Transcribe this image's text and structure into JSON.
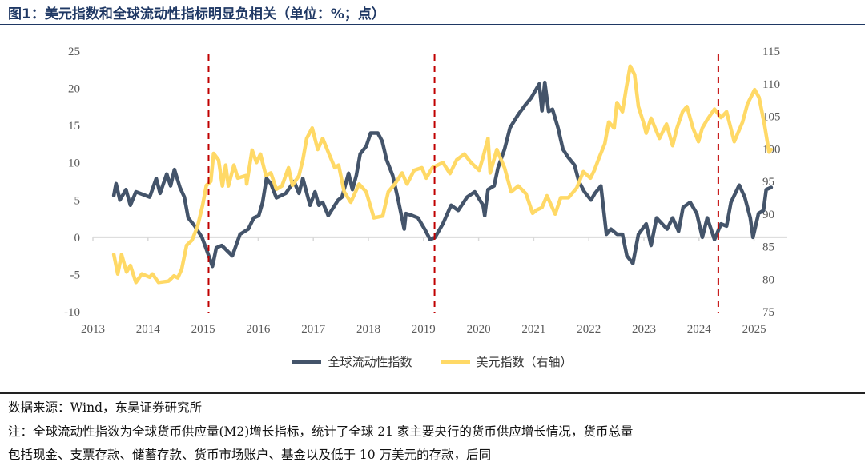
{
  "title": "图1：美元指数和全球流动性指标明显负相关（单位：%；点）",
  "footer": {
    "source": "数据来源：Wind，东吴证券研究所",
    "note_line1": "注：全球流动性指数为全球货币供应量(M2)增长指标，统计了全球 21 家主要央行的货币供应增长情况，货币总量",
    "note_line2": "包括现金、支票存款、储蓄存款、货币市场账户、基金以及低于 10 万美元的存款，后同"
  },
  "chart_data": {
    "type": "line",
    "x_ticks": [
      "2013",
      "2014",
      "2015",
      "2016",
      "2017",
      "2018",
      "2019",
      "2020",
      "2021",
      "2022",
      "2023",
      "2024",
      "2025"
    ],
    "xlim": [
      2013,
      2025.6
    ],
    "y_left": {
      "lim": [
        -10,
        25
      ],
      "ticks": [
        "25",
        "20",
        "15",
        "10",
        "5",
        "0",
        "-5",
        "-10"
      ]
    },
    "y_right": {
      "lim": [
        75,
        115
      ],
      "ticks": [
        "115",
        "110",
        "105",
        "100",
        "95",
        "90",
        "85",
        "80",
        "75"
      ]
    },
    "reference_lines": {
      "x": [
        2015.1,
        2019.2,
        2024.35
      ],
      "color": "#c00000",
      "style": "dashed"
    },
    "grid": false,
    "legend_position": "bottom",
    "series": [
      {
        "name": "全球流动性指数",
        "axis": "left",
        "color": "#44546a",
        "points": [
          [
            2013.38,
            5.6
          ],
          [
            2013.42,
            7.2
          ],
          [
            2013.49,
            5.0
          ],
          [
            2013.6,
            6.4
          ],
          [
            2013.68,
            4.3
          ],
          [
            2013.78,
            6.1
          ],
          [
            2014.03,
            5.4
          ],
          [
            2014.15,
            7.9
          ],
          [
            2014.22,
            5.9
          ],
          [
            2014.34,
            8.5
          ],
          [
            2014.41,
            6.9
          ],
          [
            2014.48,
            9.1
          ],
          [
            2014.58,
            6.7
          ],
          [
            2014.66,
            5.4
          ],
          [
            2014.73,
            2.6
          ],
          [
            2014.85,
            1.5
          ],
          [
            2014.98,
            0
          ],
          [
            2015.06,
            -1.6
          ],
          [
            2015.17,
            -3.9
          ],
          [
            2015.24,
            -1.4
          ],
          [
            2015.34,
            -1.1
          ],
          [
            2015.53,
            -2.5
          ],
          [
            2015.67,
            0.4
          ],
          [
            2015.82,
            1.1
          ],
          [
            2015.92,
            2.6
          ],
          [
            2016.01,
            2.9
          ],
          [
            2016.08,
            4.7
          ],
          [
            2016.15,
            7.9
          ],
          [
            2016.23,
            7.2
          ],
          [
            2016.33,
            5.3
          ],
          [
            2016.5,
            5.9
          ],
          [
            2016.65,
            7.5
          ],
          [
            2016.74,
            5.9
          ],
          [
            2016.81,
            7.9
          ],
          [
            2016.94,
            4.3
          ],
          [
            2017.03,
            6.1
          ],
          [
            2017.1,
            4.3
          ],
          [
            2017.17,
            4.7
          ],
          [
            2017.27,
            2.9
          ],
          [
            2017.45,
            5.0
          ],
          [
            2017.52,
            5.4
          ],
          [
            2017.64,
            8.6
          ],
          [
            2017.71,
            6.4
          ],
          [
            2017.78,
            8.3
          ],
          [
            2017.85,
            11.2
          ],
          [
            2017.96,
            12.2
          ],
          [
            2018.04,
            14.0
          ],
          [
            2018.17,
            14.0
          ],
          [
            2018.25,
            12.9
          ],
          [
            2018.33,
            10.4
          ],
          [
            2018.44,
            8.3
          ],
          [
            2018.54,
            5.0
          ],
          [
            2018.65,
            1.1
          ],
          [
            2018.68,
            3.2
          ],
          [
            2018.8,
            2.9
          ],
          [
            2018.9,
            2.6
          ],
          [
            2019.02,
            1.1
          ],
          [
            2019.12,
            -0.3
          ],
          [
            2019.21,
            0
          ],
          [
            2019.35,
            1.8
          ],
          [
            2019.5,
            4.3
          ],
          [
            2019.63,
            3.6
          ],
          [
            2019.79,
            5.4
          ],
          [
            2019.93,
            6.1
          ],
          [
            2020.08,
            4.3
          ],
          [
            2020.11,
            2.9
          ],
          [
            2020.17,
            6.4
          ],
          [
            2020.28,
            6.9
          ],
          [
            2020.35,
            9.3
          ],
          [
            2020.47,
            11.8
          ],
          [
            2020.57,
            14.7
          ],
          [
            2020.72,
            16.5
          ],
          [
            2020.86,
            17.9
          ],
          [
            2020.95,
            18.7
          ],
          [
            2021.1,
            20.6
          ],
          [
            2021.15,
            17.0
          ],
          [
            2021.2,
            20.8
          ],
          [
            2021.27,
            16.9
          ],
          [
            2021.34,
            17.2
          ],
          [
            2021.44,
            14.7
          ],
          [
            2021.53,
            11.8
          ],
          [
            2021.63,
            10.7
          ],
          [
            2021.74,
            9.7
          ],
          [
            2021.82,
            7.5
          ],
          [
            2021.92,
            6.1
          ],
          [
            2022.04,
            5.0
          ],
          [
            2022.11,
            5.9
          ],
          [
            2022.22,
            6.9
          ],
          [
            2022.32,
            0.4
          ],
          [
            2022.4,
            1.1
          ],
          [
            2022.51,
            0.4
          ],
          [
            2022.61,
            0.4
          ],
          [
            2022.69,
            -2.5
          ],
          [
            2022.8,
            -3.5
          ],
          [
            2022.9,
            0.4
          ],
          [
            2023.04,
            1.8
          ],
          [
            2023.13,
            -1.1
          ],
          [
            2023.23,
            2.6
          ],
          [
            2023.42,
            1.1
          ],
          [
            2023.52,
            2.6
          ],
          [
            2023.63,
            0.8
          ],
          [
            2023.71,
            4.0
          ],
          [
            2023.84,
            4.7
          ],
          [
            2023.96,
            3.2
          ],
          [
            2024.06,
            0
          ],
          [
            2024.15,
            2.6
          ],
          [
            2024.28,
            -0.3
          ],
          [
            2024.4,
            1.8
          ],
          [
            2024.5,
            1.5
          ],
          [
            2024.58,
            4.7
          ],
          [
            2024.73,
            7.0
          ],
          [
            2024.83,
            5.4
          ],
          [
            2024.93,
            2.6
          ],
          [
            2024.98,
            0
          ],
          [
            2025.08,
            3.2
          ],
          [
            2025.17,
            3.6
          ],
          [
            2025.22,
            6.4
          ],
          [
            2025.31,
            6.7
          ]
        ]
      },
      {
        "name": "美元指数（右轴）",
        "axis": "right",
        "color": "#ffd966",
        "points": [
          [
            2013.38,
            83.8
          ],
          [
            2013.45,
            80.8
          ],
          [
            2013.52,
            83.8
          ],
          [
            2013.61,
            81.1
          ],
          [
            2013.68,
            82.1
          ],
          [
            2013.78,
            79.5
          ],
          [
            2013.89,
            80.8
          ],
          [
            2014.03,
            80.3
          ],
          [
            2014.08,
            80.8
          ],
          [
            2014.19,
            79.5
          ],
          [
            2014.37,
            79.7
          ],
          [
            2014.47,
            80.5
          ],
          [
            2014.54,
            80.2
          ],
          [
            2014.61,
            81.5
          ],
          [
            2014.7,
            85.2
          ],
          [
            2014.8,
            86.0
          ],
          [
            2014.9,
            88.1
          ],
          [
            2014.99,
            91.3
          ],
          [
            2015.06,
            94.4
          ],
          [
            2015.14,
            95.0
          ],
          [
            2015.19,
            99.3
          ],
          [
            2015.28,
            98.3
          ],
          [
            2015.35,
            94.3
          ],
          [
            2015.41,
            97.5
          ],
          [
            2015.46,
            94.3
          ],
          [
            2015.56,
            97.5
          ],
          [
            2015.63,
            95.5
          ],
          [
            2015.78,
            95.9
          ],
          [
            2015.79,
            94.6
          ],
          [
            2015.89,
            99.8
          ],
          [
            2015.97,
            97.9
          ],
          [
            2016.04,
            99.2
          ],
          [
            2016.14,
            95.9
          ],
          [
            2016.23,
            96.3
          ],
          [
            2016.33,
            93.8
          ],
          [
            2016.43,
            94.3
          ],
          [
            2016.55,
            97.1
          ],
          [
            2016.62,
            94.4
          ],
          [
            2016.74,
            95.9
          ],
          [
            2016.81,
            98.3
          ],
          [
            2016.88,
            101.6
          ],
          [
            2016.98,
            103.2
          ],
          [
            2017.08,
            99.9
          ],
          [
            2017.17,
            101.6
          ],
          [
            2017.27,
            99.5
          ],
          [
            2017.39,
            97.1
          ],
          [
            2017.46,
            97.5
          ],
          [
            2017.56,
            93.4
          ],
          [
            2017.68,
            91.8
          ],
          [
            2017.83,
            94.6
          ],
          [
            2017.96,
            93.4
          ],
          [
            2018.1,
            89.4
          ],
          [
            2018.26,
            89.7
          ],
          [
            2018.36,
            93.4
          ],
          [
            2018.48,
            94.6
          ],
          [
            2018.61,
            96.3
          ],
          [
            2018.7,
            94.6
          ],
          [
            2018.83,
            96.7
          ],
          [
            2018.97,
            97.1
          ],
          [
            2019.05,
            95.5
          ],
          [
            2019.16,
            97.1
          ],
          [
            2019.35,
            97.9
          ],
          [
            2019.48,
            96.2
          ],
          [
            2019.6,
            98.3
          ],
          [
            2019.74,
            99.2
          ],
          [
            2019.86,
            97.9
          ],
          [
            2020.01,
            96.7
          ],
          [
            2020.08,
            98.7
          ],
          [
            2020.17,
            101.6
          ],
          [
            2020.21,
            96.3
          ],
          [
            2020.33,
            99.9
          ],
          [
            2020.47,
            97.1
          ],
          [
            2020.59,
            93.4
          ],
          [
            2020.72,
            94.3
          ],
          [
            2020.86,
            93.1
          ],
          [
            2020.98,
            90.1
          ],
          [
            2021.05,
            90.6
          ],
          [
            2021.15,
            91.0
          ],
          [
            2021.24,
            92.8
          ],
          [
            2021.39,
            90.0
          ],
          [
            2021.49,
            92.5
          ],
          [
            2021.63,
            92.5
          ],
          [
            2021.78,
            94.0
          ],
          [
            2021.9,
            96.5
          ],
          [
            2022.03,
            95.5
          ],
          [
            2022.1,
            96.7
          ],
          [
            2022.19,
            98.7
          ],
          [
            2022.29,
            100.8
          ],
          [
            2022.36,
            104.1
          ],
          [
            2022.46,
            103.2
          ],
          [
            2022.51,
            107.1
          ],
          [
            2022.61,
            105.7
          ],
          [
            2022.68,
            109.4
          ],
          [
            2022.75,
            112.7
          ],
          [
            2022.83,
            111.4
          ],
          [
            2022.9,
            106.5
          ],
          [
            2022.99,
            104.1
          ],
          [
            2023.04,
            102.4
          ],
          [
            2023.13,
            104.7
          ],
          [
            2023.28,
            101.6
          ],
          [
            2023.41,
            103.8
          ],
          [
            2023.52,
            100.5
          ],
          [
            2023.6,
            103.2
          ],
          [
            2023.7,
            105.7
          ],
          [
            2023.78,
            106.5
          ],
          [
            2023.89,
            103.2
          ],
          [
            2023.99,
            101.1
          ],
          [
            2024.06,
            103.2
          ],
          [
            2024.15,
            104.5
          ],
          [
            2024.28,
            106.1
          ],
          [
            2024.4,
            104.8
          ],
          [
            2024.5,
            105.7
          ],
          [
            2024.64,
            101.1
          ],
          [
            2024.79,
            104.1
          ],
          [
            2024.88,
            106.9
          ],
          [
            2025.01,
            109.1
          ],
          [
            2025.09,
            107.9
          ],
          [
            2025.19,
            103.6
          ],
          [
            2025.27,
            99.5
          ],
          [
            2025.31,
            99.9
          ]
        ]
      }
    ]
  }
}
